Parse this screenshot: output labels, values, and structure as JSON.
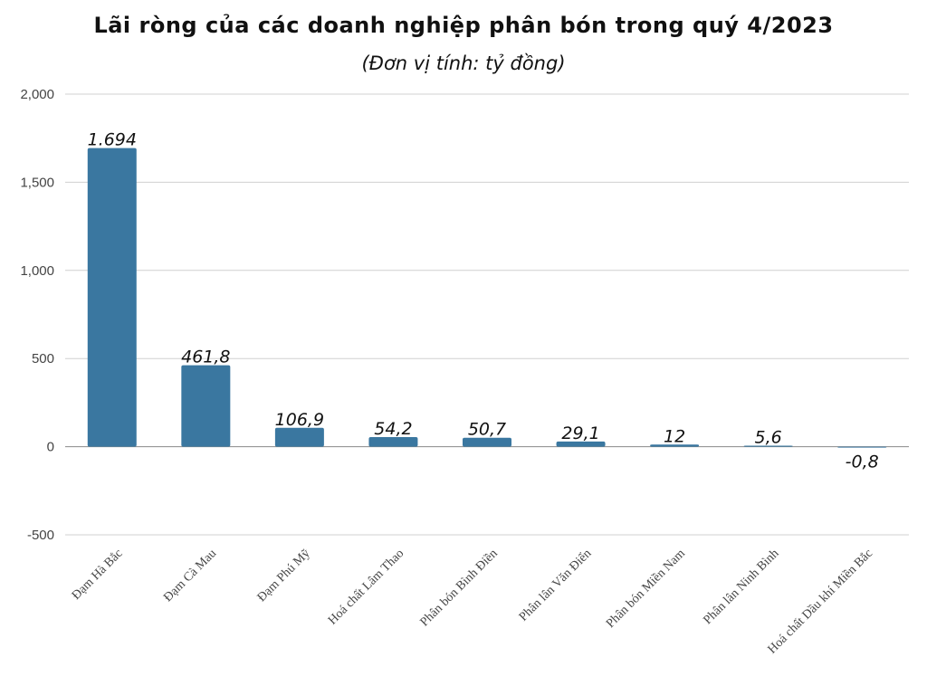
{
  "title": "Lãi ròng của các doanh nghiệp phân bón trong quý 4/2023",
  "subtitle": "(Đơn vị tính: tỷ đồng)",
  "colors": {
    "bar": "#3a77a0",
    "grid": "#d0d0d0",
    "zero_line": "#888888"
  },
  "chart_data": {
    "type": "bar",
    "title": "Lãi ròng của các doanh nghiệp phân bón trong quý 4/2023",
    "subtitle": "(Đơn vị tính: tỷ đồng)",
    "categories": [
      "Đạm Hà Bắc",
      "Đạm Cà Mau",
      "Đạm Phú Mỹ",
      "Hoá chất Lâm Thao",
      "Phân bón Bình Điền",
      "Phân lân Văn Điển",
      "Phân bón Miền Nam",
      "Phân lân Ninh Bình",
      "Hoá chất Dầu khí Miền Bắc"
    ],
    "values": [
      1694,
      461.8,
      106.9,
      54.2,
      50.7,
      29.1,
      12,
      5.6,
      -0.8
    ],
    "data_labels": [
      "1.694",
      "461,8",
      "106,9",
      "54,2",
      "50,7",
      "29,1",
      "12",
      "5,6",
      "-0,8"
    ],
    "yticks": [
      -500,
      0,
      500,
      1000,
      1500,
      2000
    ],
    "ytick_labels": [
      "-500",
      "0",
      "500",
      "1,000",
      "1,500",
      "2,000"
    ],
    "ylim": [
      -500,
      2000
    ],
    "xlabel": "",
    "ylabel": "",
    "grid": true
  }
}
